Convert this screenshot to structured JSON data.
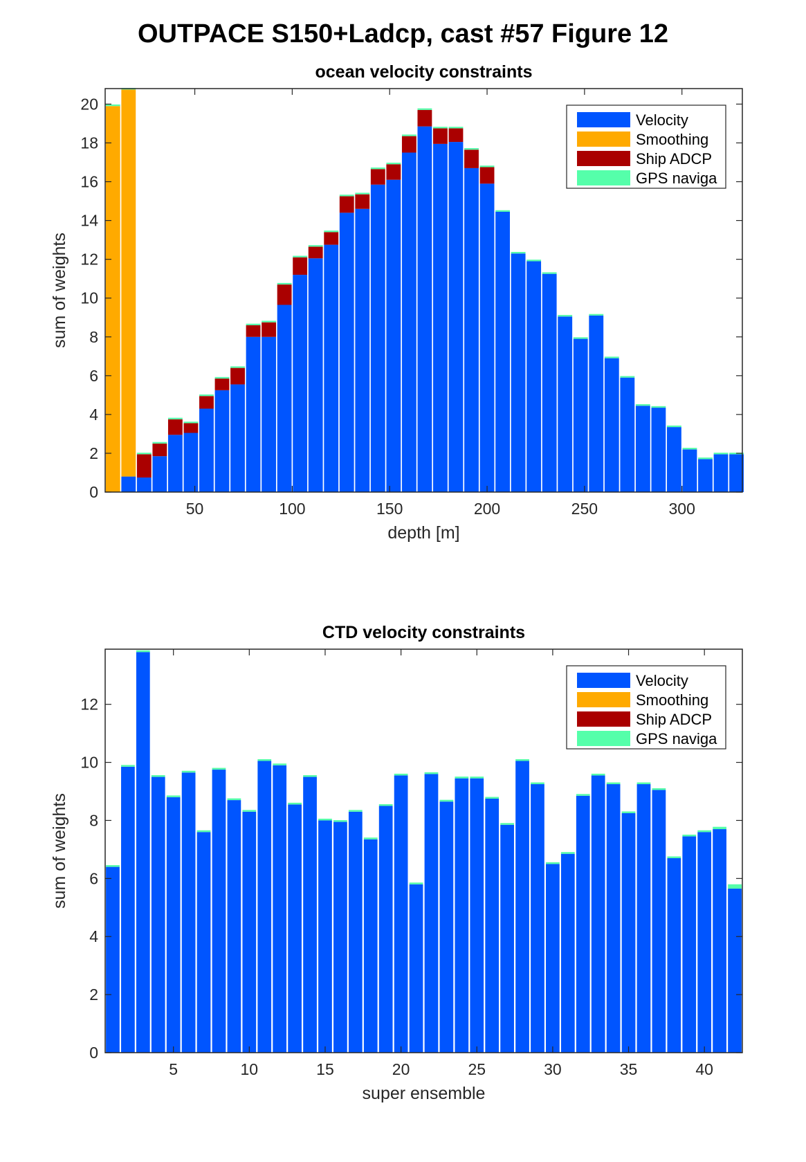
{
  "figure_title": "OUTPACE S150+Ladcp, cast #57  Figure 12",
  "colors": {
    "velocity": "#0055ff",
    "smoothing": "#ffaa00",
    "ship_adcp": "#aa0000",
    "gps": "#55ffaa",
    "axis": "#262626"
  },
  "chart_data": [
    {
      "type": "bar",
      "stacked": true,
      "title": "ocean velocity constraints",
      "xlabel": "depth [m]",
      "ylabel": "sum of weights",
      "xlim": [
        4,
        331
      ],
      "ylim": [
        0,
        20.8
      ],
      "xticks": [
        50,
        100,
        150,
        200,
        250,
        300
      ],
      "yticks": [
        0,
        2,
        4,
        6,
        8,
        10,
        12,
        14,
        16,
        18,
        20
      ],
      "legend": {
        "position": "top-right",
        "entries": [
          "Velocity",
          "Smoothing",
          "Ship ADCP",
          "GPS naviga"
        ]
      },
      "bar_width": 7.4,
      "x": [
        8,
        16,
        24,
        32,
        40,
        48,
        56,
        64,
        72,
        80,
        88,
        96,
        104,
        112,
        120,
        128,
        136,
        144,
        152,
        160,
        168,
        176,
        184,
        192,
        200,
        208,
        216,
        224,
        232,
        240,
        248,
        256,
        264,
        272,
        280,
        288,
        296,
        304,
        312,
        320,
        328
      ],
      "series": [
        {
          "name": "Velocity",
          "values": [
            0,
            0.8,
            0.75,
            1.85,
            2.95,
            3.05,
            4.3,
            5.25,
            5.55,
            8.0,
            8.0,
            9.65,
            11.2,
            12.05,
            12.75,
            14.4,
            14.6,
            15.85,
            16.1,
            17.5,
            18.85,
            17.95,
            18.05,
            16.7,
            15.9,
            14.45,
            12.3,
            11.9,
            11.25,
            9.05,
            7.9,
            9.1,
            6.9,
            5.9,
            4.45,
            4.35,
            3.35,
            2.2,
            1.7,
            1.95,
            1.95
          ]
        },
        {
          "name": "Smoothing",
          "values": [
            19.9,
            19.95,
            0,
            0,
            0,
            0,
            0,
            0,
            0,
            0,
            0,
            0,
            0,
            0,
            0,
            0,
            0,
            0,
            0,
            0,
            0,
            0,
            0,
            0,
            0,
            0,
            0,
            0,
            0,
            0,
            0,
            0,
            0,
            0,
            0,
            0,
            0,
            0,
            0,
            0,
            0
          ]
        },
        {
          "name": "Ship ADCP",
          "values": [
            0,
            0,
            1.2,
            0.65,
            0.8,
            0.5,
            0.65,
            0.6,
            0.85,
            0.6,
            0.75,
            1.05,
            0.9,
            0.6,
            0.65,
            0.85,
            0.75,
            0.8,
            0.8,
            0.85,
            0.85,
            0.8,
            0.7,
            0.95,
            0.85,
            0,
            0,
            0,
            0,
            0,
            0,
            0,
            0,
            0,
            0,
            0,
            0,
            0,
            0,
            0,
            0
          ]
        },
        {
          "name": "GPS naviga",
          "values": [
            0.08,
            0.08,
            0.08,
            0.08,
            0.08,
            0.08,
            0.08,
            0.08,
            0.08,
            0.08,
            0.08,
            0.08,
            0.08,
            0.08,
            0.08,
            0.08,
            0.08,
            0.08,
            0.08,
            0.08,
            0.08,
            0.08,
            0.08,
            0.08,
            0.08,
            0.08,
            0.08,
            0.08,
            0.08,
            0.08,
            0.08,
            0.08,
            0.08,
            0.08,
            0.08,
            0.08,
            0.08,
            0.08,
            0.08,
            0.08,
            0.08
          ]
        }
      ]
    },
    {
      "type": "bar",
      "stacked": true,
      "title": "CTD velocity constraints",
      "xlabel": "super ensemble",
      "ylabel": "sum of weights",
      "xlim": [
        0.5,
        42.5
      ],
      "ylim": [
        0,
        13.9
      ],
      "xticks": [
        5,
        10,
        15,
        20,
        25,
        30,
        35,
        40
      ],
      "yticks": [
        0,
        2,
        4,
        6,
        8,
        10,
        12
      ],
      "legend": {
        "position": "top-right",
        "entries": [
          "Velocity",
          "Smoothing",
          "Ship ADCP",
          "GPS naviga"
        ]
      },
      "bar_width": 0.9,
      "x": [
        1,
        2,
        3,
        4,
        5,
        6,
        7,
        8,
        9,
        10,
        11,
        12,
        13,
        14,
        15,
        16,
        17,
        18,
        19,
        20,
        21,
        22,
        23,
        24,
        25,
        26,
        27,
        28,
        29,
        30,
        31,
        32,
        33,
        34,
        35,
        36,
        37,
        38,
        39,
        40,
        41,
        42
      ],
      "series": [
        {
          "name": "Velocity",
          "values": [
            6.4,
            9.85,
            13.8,
            9.5,
            8.8,
            9.65,
            7.6,
            9.75,
            8.7,
            8.3,
            10.05,
            9.9,
            8.55,
            9.5,
            8.0,
            7.95,
            8.3,
            7.35,
            8.5,
            9.55,
            5.8,
            9.6,
            8.65,
            9.45,
            9.45,
            8.75,
            7.85,
            10.05,
            9.25,
            6.5,
            6.85,
            8.85,
            9.55,
            9.25,
            8.25,
            9.25,
            9.05,
            6.7,
            7.45,
            7.6,
            7.7,
            5.65
          ]
        },
        {
          "name": "Smoothing",
          "values": [
            0,
            0,
            0,
            0,
            0,
            0,
            0,
            0,
            0,
            0,
            0,
            0,
            0,
            0,
            0,
            0,
            0,
            0,
            0,
            0,
            0,
            0,
            0,
            0,
            0,
            0,
            0,
            0,
            0,
            0,
            0,
            0,
            0,
            0,
            0,
            0,
            0,
            0,
            0,
            0,
            0,
            0
          ]
        },
        {
          "name": "Ship ADCP",
          "values": [
            0,
            0,
            0,
            0,
            0,
            0,
            0,
            0,
            0,
            0,
            0,
            0,
            0,
            0,
            0,
            0,
            0,
            0,
            0,
            0,
            0,
            0,
            0,
            0,
            0,
            0,
            0,
            0,
            0,
            0,
            0,
            0,
            0,
            0,
            0,
            0,
            0,
            0,
            0,
            0,
            0,
            0
          ]
        },
        {
          "name": "GPS naviga",
          "values": [
            0.06,
            0.06,
            0.06,
            0.06,
            0.06,
            0.06,
            0.06,
            0.06,
            0.06,
            0.06,
            0.06,
            0.06,
            0.06,
            0.06,
            0.06,
            0.06,
            0.06,
            0.06,
            0.06,
            0.06,
            0.06,
            0.06,
            0.06,
            0.06,
            0.06,
            0.06,
            0.06,
            0.06,
            0.06,
            0.06,
            0.06,
            0.06,
            0.06,
            0.06,
            0.06,
            0.06,
            0.06,
            0.06,
            0.06,
            0.06,
            0.08,
            0.15
          ]
        }
      ]
    }
  ]
}
